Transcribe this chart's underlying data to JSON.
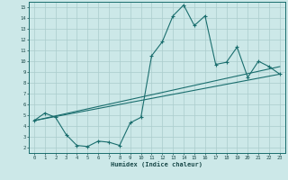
{
  "title": "",
  "xlabel": "Humidex (Indice chaleur)",
  "ylabel": "",
  "background_color": "#cce8e8",
  "grid_color": "#aacccc",
  "line_color": "#1a6e6e",
  "xlim": [
    -0.5,
    23.5
  ],
  "ylim": [
    1.5,
    15.5
  ],
  "xticks": [
    0,
    1,
    2,
    3,
    4,
    5,
    6,
    7,
    8,
    9,
    10,
    11,
    12,
    13,
    14,
    15,
    16,
    17,
    18,
    19,
    20,
    21,
    22,
    23
  ],
  "yticks": [
    2,
    3,
    4,
    5,
    6,
    7,
    8,
    9,
    10,
    11,
    12,
    13,
    14,
    15
  ],
  "line1_x": [
    0,
    1,
    2,
    3,
    4,
    5,
    6,
    7,
    8,
    9,
    10,
    11,
    12,
    13,
    14,
    15,
    16,
    17,
    18,
    19,
    20,
    21,
    22,
    23
  ],
  "line1_y": [
    4.5,
    5.2,
    4.8,
    3.2,
    2.2,
    2.1,
    2.6,
    2.5,
    2.2,
    4.3,
    4.8,
    10.5,
    11.8,
    14.2,
    15.2,
    13.3,
    14.2,
    9.7,
    9.9,
    11.3,
    8.5,
    10.0,
    9.5,
    8.8
  ],
  "line2_x": [
    0,
    23
  ],
  "line2_y": [
    4.5,
    8.8
  ],
  "line3_x": [
    0,
    23
  ],
  "line3_y": [
    4.5,
    9.5
  ]
}
